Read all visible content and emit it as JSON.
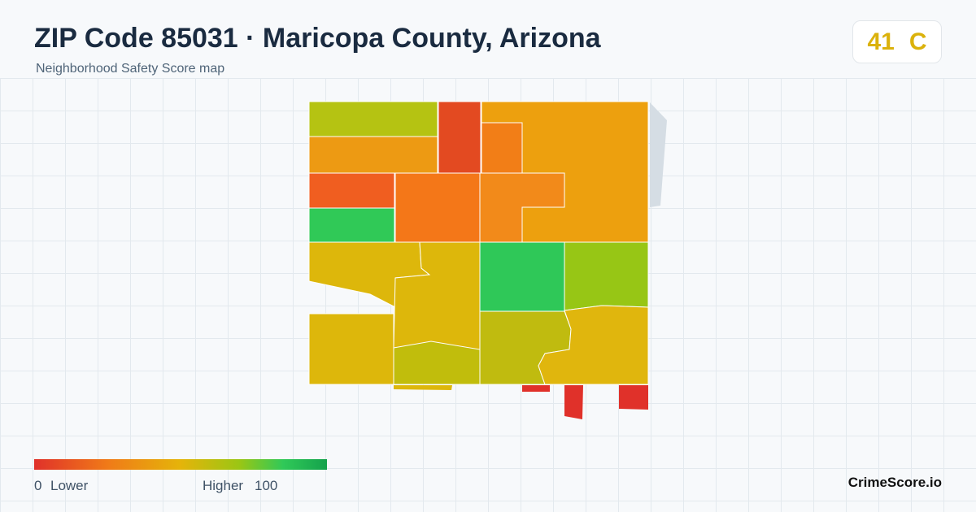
{
  "header": {
    "title": "ZIP Code 85031 · Maricopa County, Arizona",
    "subtitle": "Neighborhood Safety Score map"
  },
  "score": {
    "value": "41",
    "grade": "C"
  },
  "legend": {
    "min": "0",
    "min_label": "Lower",
    "max_label": "Higher",
    "max": "100"
  },
  "brand": "CrimeScore.io"
}
